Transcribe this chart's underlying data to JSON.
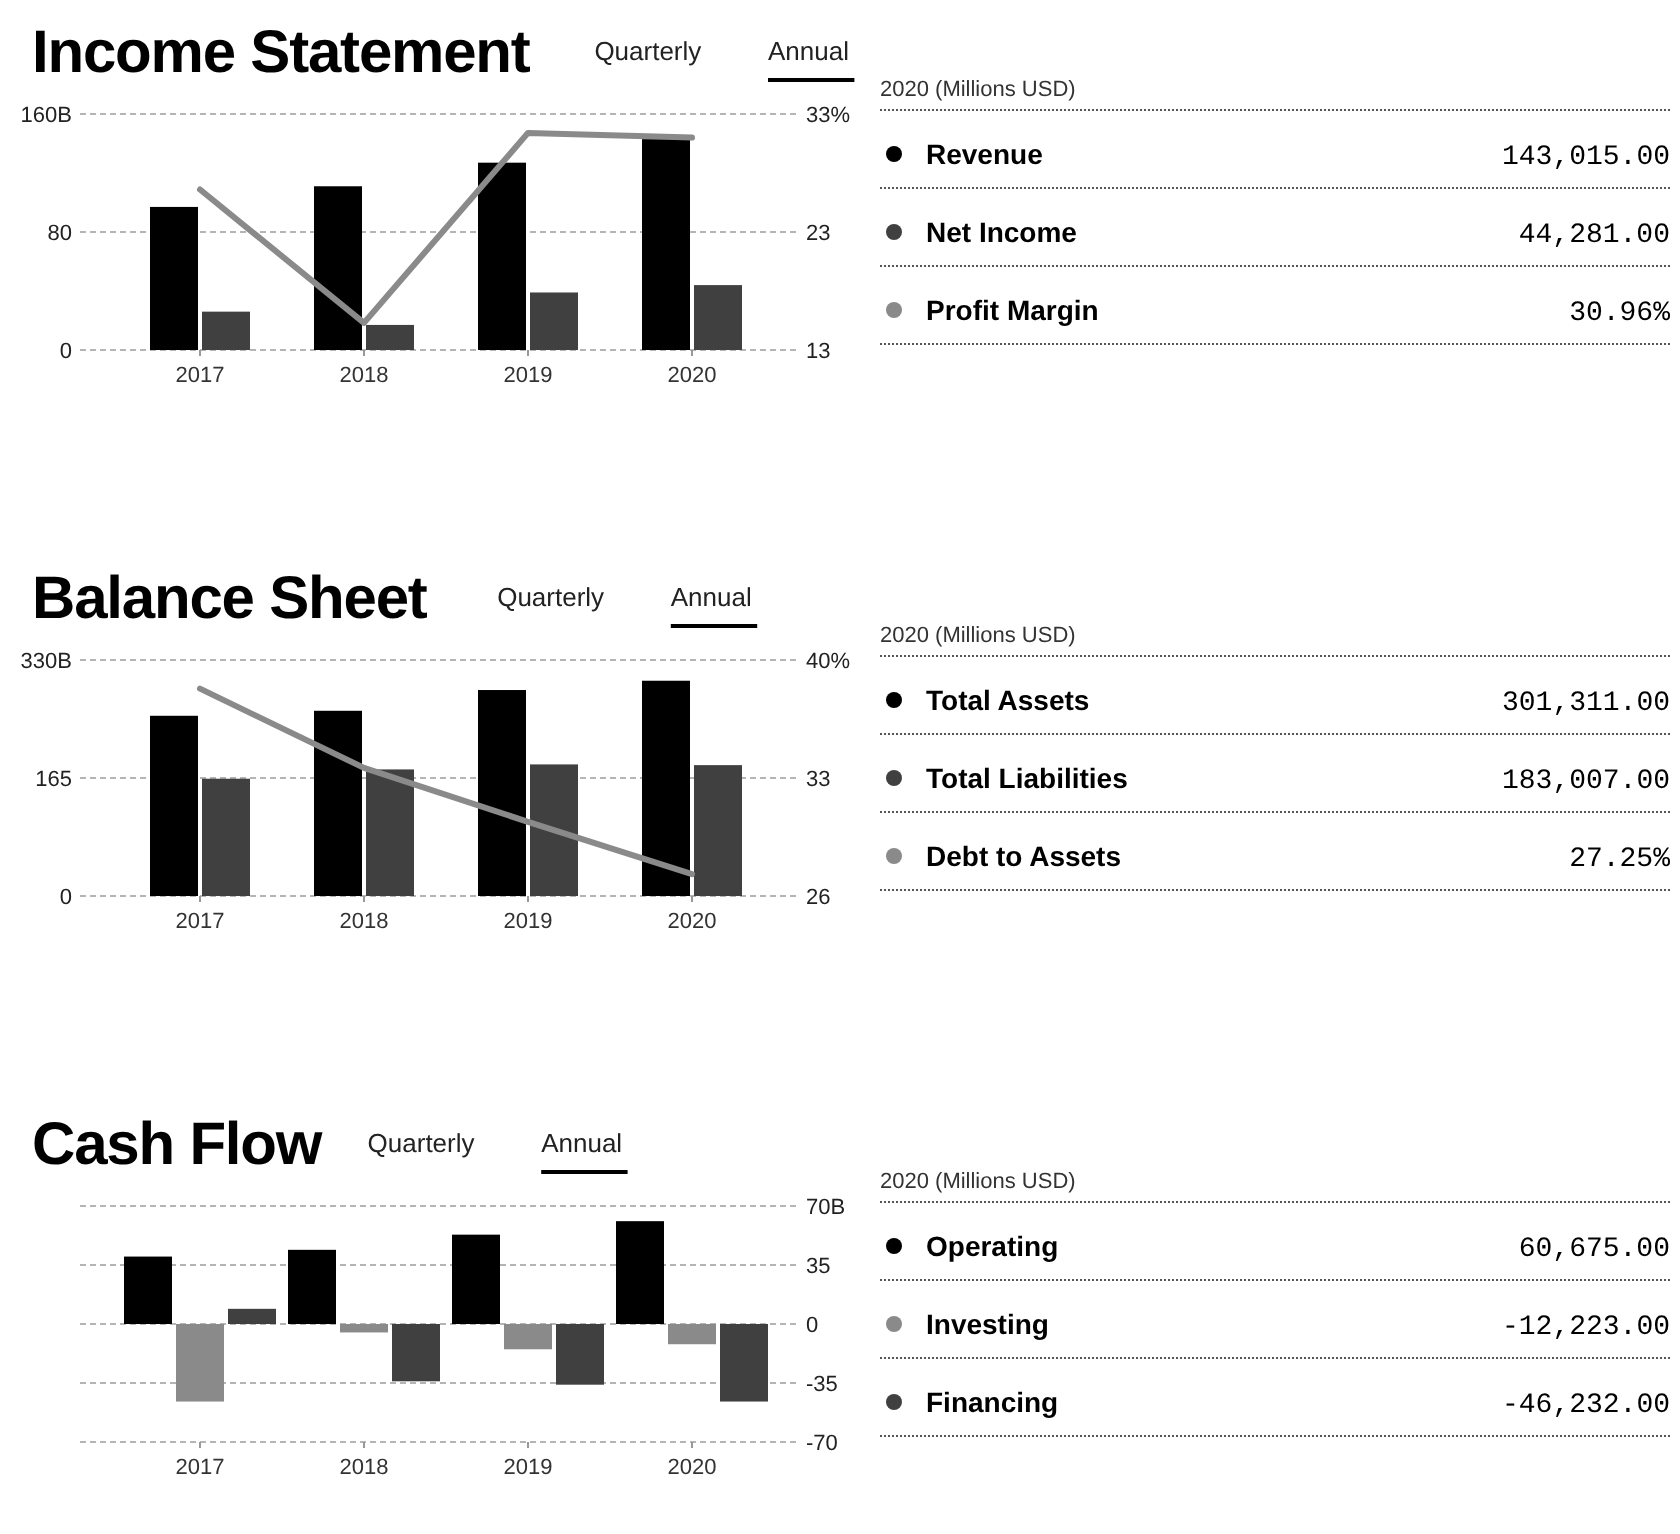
{
  "chart_data": [
    {
      "type": "bar",
      "title": "Income Statement",
      "annotations": [
        "Quarterly",
        "Annual",
        "143,015.00",
        "44,281.00",
        "30.96%"
      ],
      "legend_title": "2020 (Millions USD)",
      "legend": "right",
      "grid": "y",
      "categories": [
        "2017",
        "2018",
        "2019",
        "2020"
      ],
      "ylim": [
        0,
        160
      ],
      "yticks": [
        {
          "value": 160,
          "label": "160B"
        },
        80,
        0
      ],
      "y2lim": [
        13,
        33
      ],
      "y2ticks": [
        {
          "value": 33,
          "label": "33%"
        },
        23,
        13
      ],
      "series": [
        {
          "name": "Revenue",
          "color": "#000000",
          "values": [
            97,
            111,
            127,
            143
          ]
        },
        {
          "name": "Net Income",
          "color": "#404040",
          "values": [
            26,
            17,
            39,
            44
          ]
        },
        {
          "name": "Profit Margin",
          "type": "line",
          "axis": "y2",
          "color": "#8a8a8a",
          "values": [
            26.6,
            15.3,
            31.4,
            31.0
          ]
        }
      ]
    },
    {
      "type": "bar",
      "title": "Balance Sheet",
      "annotations": [
        "Quarterly",
        "Annual",
        "301,311.00",
        "183,007.00",
        "27.25%"
      ],
      "legend_title": "2020 (Millions USD)",
      "legend": "right",
      "grid": "y",
      "categories": [
        "2017",
        "2018",
        "2019",
        "2020"
      ],
      "ylim": [
        0,
        330
      ],
      "yticks": [
        {
          "value": 330,
          "label": "330B"
        },
        165,
        0
      ],
      "y2lim": [
        26,
        40
      ],
      "y2ticks": [
        {
          "value": 40,
          "label": "40%"
        },
        33,
        26
      ],
      "series": [
        {
          "name": "Total Assets",
          "color": "#000000",
          "values": [
            252,
            259,
            288,
            301
          ]
        },
        {
          "name": "Total Liabilities",
          "color": "#404040",
          "values": [
            164,
            177,
            184,
            183
          ]
        },
        {
          "name": "Debt to Assets",
          "type": "line",
          "axis": "y2",
          "color": "#8a8a8a",
          "values": [
            38.3,
            33.6,
            30.4,
            27.3
          ]
        }
      ]
    },
    {
      "type": "bar",
      "title": "Cash Flow",
      "annotations": [
        "Quarterly",
        "Annual",
        "60,675.00",
        "-12,223.00",
        "-46,232.00"
      ],
      "legend_title": "2020 (Millions USD)",
      "legend": "right",
      "grid": "y",
      "categories": [
        "2017",
        "2018",
        "2019",
        "2020"
      ],
      "y2lim": [
        -70,
        70
      ],
      "y2ticks": [
        {
          "value": 70,
          "label": "70B"
        },
        35,
        0,
        -35,
        -70
      ],
      "series": [
        {
          "name": "Operating",
          "axis": "y2",
          "color": "#000000",
          "values": [
            40,
            44,
            53,
            61
          ]
        },
        {
          "name": "Investing",
          "axis": "y2",
          "color": "#8a8a8a",
          "values": [
            -46,
            -5,
            -15,
            -12
          ]
        },
        {
          "name": "Financing",
          "axis": "y2",
          "color": "#404040",
          "values": [
            9,
            -34,
            -36,
            -46
          ]
        }
      ]
    }
  ]
}
